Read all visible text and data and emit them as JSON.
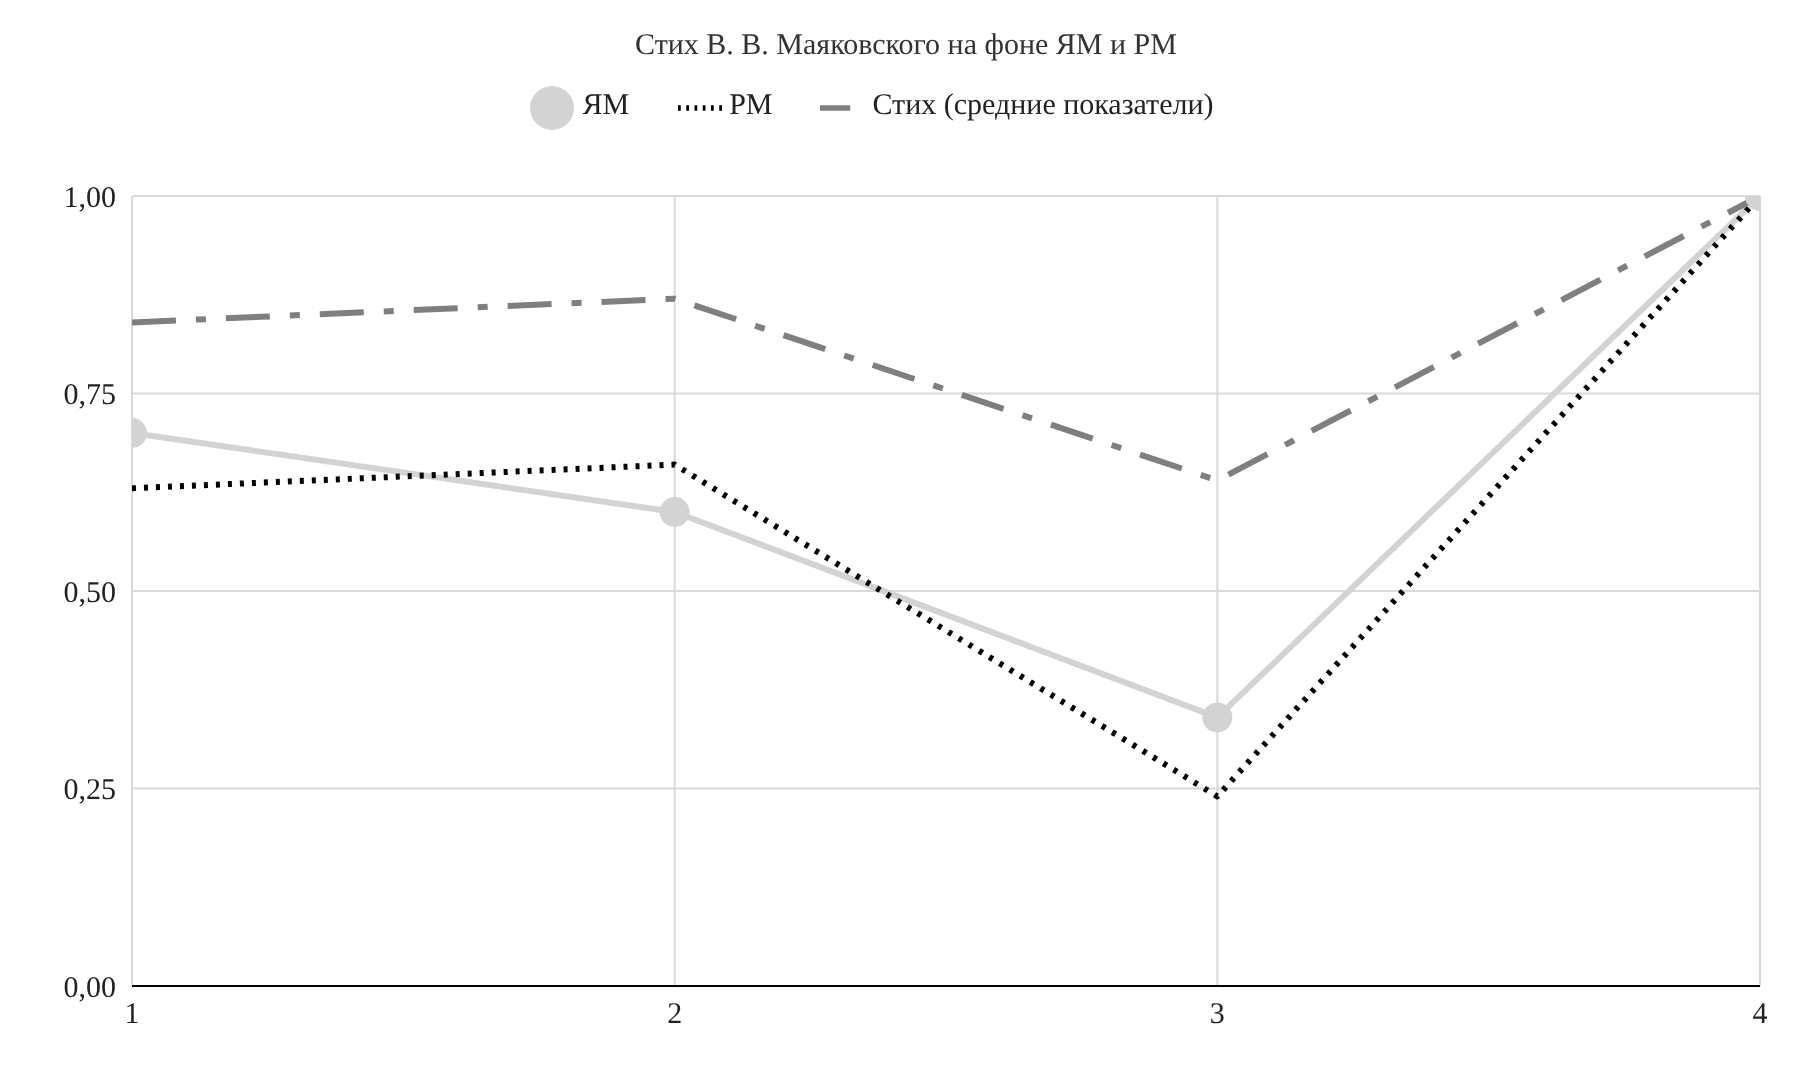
{
  "chart_data": {
    "type": "line",
    "title": "Стих В. В. Маяковского на фоне ЯМ и РМ",
    "x": [
      1,
      2,
      3,
      4
    ],
    "series": [
      {
        "name": "ЯМ",
        "color": "#d3d3d3",
        "values": [
          0.7,
          0.6,
          0.34,
          1.0
        ],
        "marker": "circle",
        "line_style": "solid"
      },
      {
        "name": "РМ",
        "color": "#000000",
        "values": [
          0.63,
          0.66,
          0.24,
          1.0
        ],
        "marker": "none",
        "line_style": "dotted"
      },
      {
        "name": "Стих (средние показатели)",
        "color": "#7f7f7f",
        "values": [
          0.84,
          0.87,
          0.64,
          1.0
        ],
        "marker": "none",
        "line_style": "dashed"
      }
    ],
    "xlim": [
      1,
      4
    ],
    "xticks": [
      1,
      2,
      3,
      4
    ],
    "ylim": [
      0,
      1
    ],
    "yticks": [
      {
        "value": 0,
        "label": "0,00"
      },
      {
        "value": 0.25,
        "label": "0,25"
      },
      {
        "value": 0.5,
        "label": "0,50"
      },
      {
        "value": 0.75,
        "label": "0,75"
      },
      {
        "value": 1,
        "label": "1,00"
      }
    ],
    "grid": true,
    "legend": "top"
  }
}
